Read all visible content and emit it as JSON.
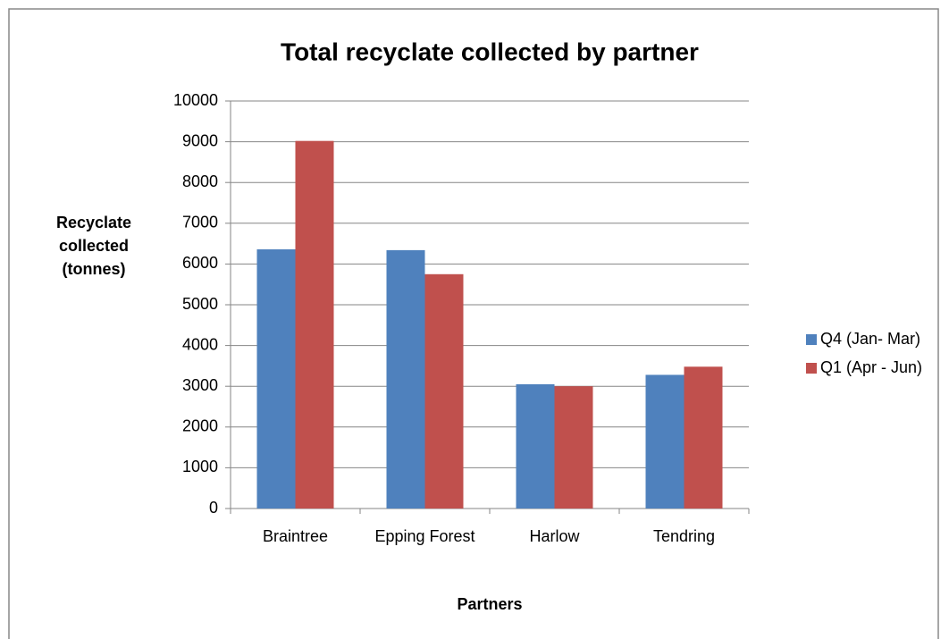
{
  "chart_data": {
    "type": "bar",
    "title": "Total recyclate collected by partner",
    "x_label": "Partners",
    "y_label": "Recyclate collected (tonnes)",
    "categories": [
      "Braintree",
      "Epping Forest",
      "Harlow",
      "Tendring"
    ],
    "series": [
      {
        "name": "Q4 (Jan- Mar)",
        "color": "#4f81bd",
        "values": [
          6360,
          6340,
          3050,
          3280
        ]
      },
      {
        "name": "Q1 (Apr - Jun)",
        "color": "#c0504d",
        "values": [
          9020,
          5750,
          3000,
          3480
        ]
      }
    ],
    "ylim": [
      0,
      10000
    ],
    "yticks": [
      0,
      1000,
      2000,
      3000,
      4000,
      5000,
      6000,
      7000,
      8000,
      9000,
      10000
    ],
    "grid": true,
    "legend": "right"
  }
}
